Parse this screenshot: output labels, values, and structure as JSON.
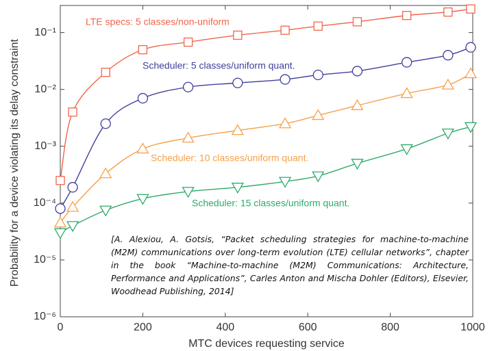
{
  "chart_data": {
    "type": "line",
    "xlabel": "MTC devices requesting service",
    "ylabel": "Probability for a device violating its delay constraint",
    "x": [
      0,
      30,
      110,
      200,
      310,
      430,
      545,
      625,
      720,
      840,
      940,
      995
    ],
    "xlim": [
      0,
      1000
    ],
    "xticks": [
      0,
      200,
      400,
      600,
      800,
      1000
    ],
    "ylim": [
      1e-06,
      0.3
    ],
    "log_y": true,
    "yticks": [
      {
        "value": 1e-06,
        "label": "10⁻⁶"
      },
      {
        "value": 1e-05,
        "label": "10⁻⁵"
      },
      {
        "value": 0.0001,
        "label": "10⁻⁴"
      },
      {
        "value": 0.001,
        "label": "10⁻³"
      },
      {
        "value": 0.01,
        "label": "10⁻²"
      },
      {
        "value": 0.1,
        "label": "10⁻¹"
      }
    ],
    "series": [
      {
        "name": "LTE specs: 5 classes/non-uniform",
        "color": "#f0654a",
        "marker": "square",
        "values": [
          0.00025,
          0.004,
          0.02,
          0.05,
          0.068,
          0.09,
          0.11,
          0.13,
          0.155,
          0.2,
          0.23,
          0.26
        ]
      },
      {
        "name": "Scheduler: 5 classes/uniform quant.",
        "color": "#3f3f9b",
        "marker": "circle",
        "values": [
          8e-05,
          0.00019,
          0.0025,
          0.007,
          0.011,
          0.013,
          0.015,
          0.018,
          0.021,
          0.03,
          0.04,
          0.055
        ]
      },
      {
        "name": "Scheduler: 10 classes/uniform quant.",
        "color": "#f7a04a",
        "marker": "triangle-up",
        "values": [
          4.5e-05,
          8.5e-05,
          0.00033,
          0.0009,
          0.0014,
          0.0019,
          0.0025,
          0.0035,
          0.0052,
          0.0085,
          0.012,
          0.019
        ]
      },
      {
        "name": "Scheduler: 15 classes/uniform quant.",
        "color": "#2eaa6a",
        "marker": "triangle-down",
        "values": [
          3e-05,
          4e-05,
          7.5e-05,
          0.00012,
          0.00016,
          0.00019,
          0.00024,
          0.0003,
          0.0005,
          0.0009,
          0.0017,
          0.0022
        ]
      }
    ],
    "citation": "[A. Alexiou, A. Gotsis, “Packet scheduling strategies for machine-to-machine (M2M) communications over long-term evolution (LTE) cellular networks”, chapter in the book “Machine-to-machine (M2M) Communications: Architecture, Performance and Applications”, Carles Anton and Mischa Dohler (Editors), Elsevier, Woodhead Publishing, 2014]"
  }
}
